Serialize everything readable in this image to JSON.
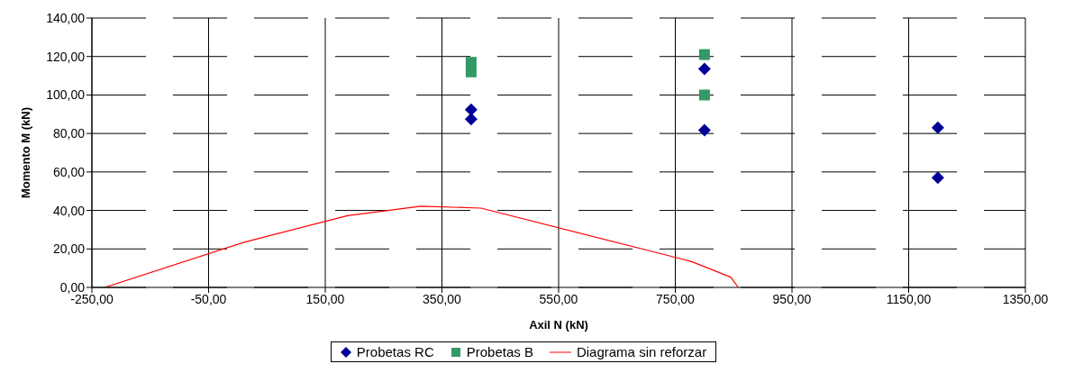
{
  "chart_data": {
    "type": "scatter",
    "xlabel": "Axil N (kN)",
    "ylabel": "Momento  M (kN)",
    "xlim": [
      -250,
      1350
    ],
    "xticks": [
      {
        "value": -250,
        "label": "-250,00"
      },
      {
        "value": -50,
        "label": "-50,00"
      },
      {
        "value": 150,
        "label": "150,00"
      },
      {
        "value": 350,
        "label": "350,00"
      },
      {
        "value": 550,
        "label": "550,00"
      },
      {
        "value": 750,
        "label": "750,00"
      },
      {
        "value": 950,
        "label": "950,00"
      },
      {
        "value": 1150,
        "label": "1150,00"
      },
      {
        "value": 1350,
        "label": "1350,00"
      }
    ],
    "ylim": [
      0,
      140
    ],
    "yticks": [
      {
        "value": 0,
        "label": "0,00"
      },
      {
        "value": 20,
        "label": "20,00"
      },
      {
        "value": 40,
        "label": "40,00"
      },
      {
        "value": 60,
        "label": "60,00"
      },
      {
        "value": 80,
        "label": "80,00"
      },
      {
        "value": 100,
        "label": "100,00"
      },
      {
        "value": 120,
        "label": "120,00"
      },
      {
        "value": 140,
        "label": "140,00"
      }
    ],
    "grid": true,
    "legend": "bottom",
    "series": [
      {
        "name": "Probetas RC",
        "marker": "diamond",
        "color": "#000099",
        "x": [
          400,
          400,
          800,
          800,
          1200,
          1200
        ],
        "values": [
          92.3,
          87.5,
          113.5,
          81.7,
          83,
          57
        ]
      },
      {
        "name": "Probetas B",
        "marker": "square",
        "color": "#339966",
        "x": [
          400,
          400,
          800,
          800
        ],
        "values": [
          117,
          112,
          121,
          100
        ]
      },
      {
        "name": "Diagrama sin reforzar",
        "type": "line",
        "marker": "none",
        "color": "#ff0000",
        "x": [
          -228,
          11,
          188,
          314,
          417,
          749,
          779,
          845,
          858
        ],
        "values": [
          0,
          23.5,
          37.3,
          42.2,
          41.2,
          15.7,
          13.3,
          5.3,
          0
        ]
      }
    ]
  }
}
